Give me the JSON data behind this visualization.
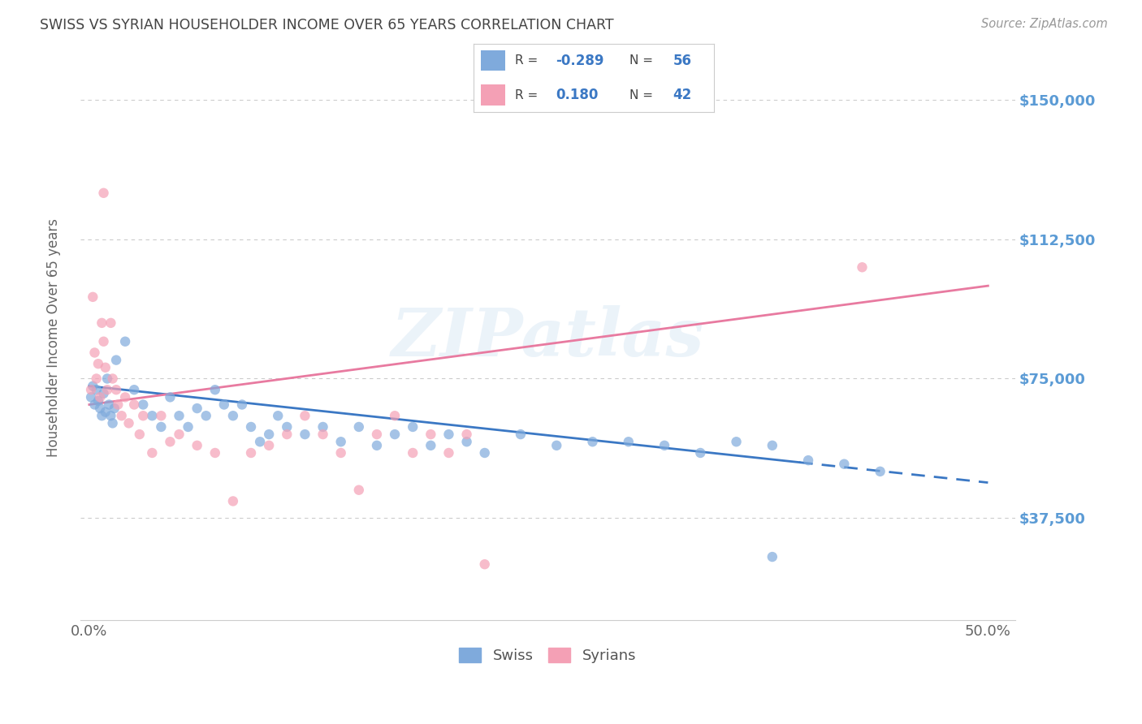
{
  "title": "SWISS VS SYRIAN HOUSEHOLDER INCOME OVER 65 YEARS CORRELATION CHART",
  "source": "Source: ZipAtlas.com",
  "ylabel": "Householder Income Over 65 years",
  "ytick_labels": [
    "$37,500",
    "$75,000",
    "$112,500",
    "$150,000"
  ],
  "ytick_values": [
    37500,
    75000,
    112500,
    150000
  ],
  "ymin": 10000,
  "ymax": 162000,
  "xmin": -0.005,
  "xmax": 0.515,
  "swiss_color": "#7faadc",
  "syrian_color": "#f4a0b5",
  "swiss_line_color": "#3b78c4",
  "syrian_line_color": "#e87aa0",
  "swiss_R": -0.289,
  "swiss_N": 56,
  "syrian_R": 0.18,
  "syrian_N": 42,
  "swiss_x": [
    0.001,
    0.002,
    0.003,
    0.004,
    0.005,
    0.006,
    0.007,
    0.008,
    0.009,
    0.01,
    0.011,
    0.012,
    0.013,
    0.014,
    0.015,
    0.02,
    0.025,
    0.03,
    0.035,
    0.04,
    0.045,
    0.05,
    0.055,
    0.06,
    0.065,
    0.07,
    0.075,
    0.08,
    0.085,
    0.09,
    0.095,
    0.1,
    0.105,
    0.11,
    0.12,
    0.13,
    0.14,
    0.15,
    0.16,
    0.17,
    0.18,
    0.19,
    0.2,
    0.21,
    0.22,
    0.24,
    0.26,
    0.28,
    0.3,
    0.32,
    0.34,
    0.36,
    0.38,
    0.4,
    0.42,
    0.44
  ],
  "swiss_y": [
    70000,
    73000,
    68000,
    72000,
    69000,
    67000,
    65000,
    71000,
    66000,
    75000,
    68000,
    65000,
    63000,
    67000,
    80000,
    85000,
    72000,
    68000,
    65000,
    62000,
    70000,
    65000,
    62000,
    67000,
    65000,
    72000,
    68000,
    65000,
    68000,
    62000,
    58000,
    60000,
    65000,
    62000,
    60000,
    62000,
    58000,
    62000,
    57000,
    60000,
    62000,
    57000,
    60000,
    58000,
    55000,
    60000,
    57000,
    58000,
    58000,
    57000,
    55000,
    58000,
    57000,
    53000,
    52000,
    50000
  ],
  "swiss_y_outlier_low": [
    27000
  ],
  "swiss_x_outlier_low": [
    0.38
  ],
  "syrian_x": [
    0.001,
    0.002,
    0.003,
    0.004,
    0.005,
    0.006,
    0.007,
    0.008,
    0.009,
    0.01,
    0.012,
    0.013,
    0.015,
    0.016,
    0.018,
    0.02,
    0.022,
    0.025,
    0.028,
    0.03,
    0.035,
    0.04,
    0.045,
    0.05,
    0.06,
    0.07,
    0.08,
    0.09,
    0.1,
    0.11,
    0.12,
    0.13,
    0.14,
    0.15,
    0.16,
    0.17,
    0.18,
    0.19,
    0.2,
    0.21,
    0.22,
    0.43
  ],
  "syrian_y": [
    72000,
    97000,
    82000,
    75000,
    79000,
    70000,
    90000,
    85000,
    78000,
    72000,
    90000,
    75000,
    72000,
    68000,
    65000,
    70000,
    63000,
    68000,
    60000,
    65000,
    55000,
    65000,
    58000,
    60000,
    57000,
    55000,
    42000,
    55000,
    57000,
    60000,
    65000,
    60000,
    55000,
    45000,
    60000,
    65000,
    55000,
    60000,
    55000,
    60000,
    25000,
    105000
  ],
  "syrian_outlier_high_x": [
    0.008
  ],
  "syrian_outlier_high_y": [
    125000
  ],
  "watermark": "ZIPatlas",
  "background_color": "#ffffff",
  "grid_color": "#cccccc",
  "title_color": "#444444",
  "axis_label_color": "#666666",
  "right_tick_color": "#5b9bd5"
}
